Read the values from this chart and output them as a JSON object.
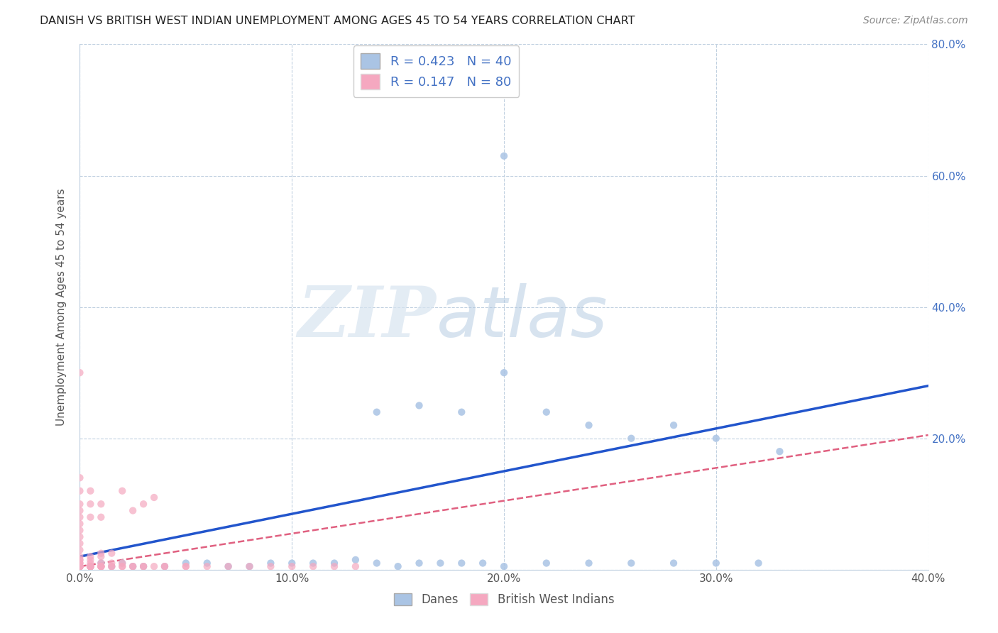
{
  "title": "DANISH VS BRITISH WEST INDIAN UNEMPLOYMENT AMONG AGES 45 TO 54 YEARS CORRELATION CHART",
  "source": "Source: ZipAtlas.com",
  "ylabel": "Unemployment Among Ages 45 to 54 years",
  "xlim": [
    0.0,
    0.4
  ],
  "ylim": [
    0.0,
    0.8
  ],
  "xticks": [
    0.0,
    0.1,
    0.2,
    0.3,
    0.4
  ],
  "xticklabels": [
    "0.0%",
    "10.0%",
    "20.0%",
    "30.0%",
    "40.0%"
  ],
  "yticks": [
    0.0,
    0.2,
    0.4,
    0.6,
    0.8
  ],
  "yticklabels_right": [
    "",
    "20.0%",
    "40.0%",
    "60.0%",
    "80.0%"
  ],
  "danes_color": "#aac4e4",
  "bwi_color": "#f5a8c0",
  "danes_line_color": "#2255cc",
  "bwi_line_color": "#e06080",
  "danes_R": 0.423,
  "danes_N": 40,
  "bwi_R": 0.147,
  "bwi_N": 80,
  "danes_scatter_x": [
    0.005,
    0.01,
    0.015,
    0.02,
    0.025,
    0.03,
    0.04,
    0.05,
    0.06,
    0.07,
    0.08,
    0.09,
    0.1,
    0.11,
    0.12,
    0.13,
    0.14,
    0.15,
    0.16,
    0.17,
    0.18,
    0.19,
    0.2,
    0.22,
    0.24,
    0.26,
    0.28,
    0.3,
    0.32,
    0.33,
    0.14,
    0.16,
    0.18,
    0.2,
    0.22,
    0.24,
    0.26,
    0.28,
    0.2,
    0.3
  ],
  "danes_scatter_y": [
    0.005,
    0.01,
    0.005,
    0.01,
    0.005,
    0.005,
    0.005,
    0.01,
    0.01,
    0.005,
    0.005,
    0.01,
    0.01,
    0.01,
    0.01,
    0.015,
    0.01,
    0.005,
    0.01,
    0.01,
    0.01,
    0.01,
    0.005,
    0.01,
    0.01,
    0.01,
    0.01,
    0.01,
    0.01,
    0.18,
    0.24,
    0.25,
    0.24,
    0.3,
    0.24,
    0.22,
    0.2,
    0.22,
    0.63,
    0.2
  ],
  "bwi_scatter_x": [
    0.0,
    0.0,
    0.0,
    0.0,
    0.0,
    0.0,
    0.0,
    0.0,
    0.0,
    0.0,
    0.005,
    0.005,
    0.005,
    0.005,
    0.005,
    0.005,
    0.005,
    0.005,
    0.005,
    0.005,
    0.01,
    0.01,
    0.01,
    0.01,
    0.01,
    0.015,
    0.015,
    0.02,
    0.02,
    0.025,
    0.025,
    0.03,
    0.03,
    0.035,
    0.04,
    0.04,
    0.05,
    0.05,
    0.06,
    0.07,
    0.08,
    0.09,
    0.1,
    0.11,
    0.12,
    0.13,
    0.005,
    0.01,
    0.015,
    0.02,
    0.0,
    0.0,
    0.0,
    0.0,
    0.0,
    0.005,
    0.005,
    0.01,
    0.01,
    0.015,
    0.0,
    0.0,
    0.0,
    0.0,
    0.0,
    0.0,
    0.0,
    0.0,
    0.0,
    0.0,
    0.005,
    0.005,
    0.005,
    0.01,
    0.01,
    0.02,
    0.025,
    0.03,
    0.035,
    0.0
  ],
  "bwi_scatter_y": [
    0.005,
    0.005,
    0.005,
    0.005,
    0.005,
    0.005,
    0.005,
    0.005,
    0.005,
    0.005,
    0.005,
    0.005,
    0.005,
    0.005,
    0.005,
    0.005,
    0.005,
    0.005,
    0.005,
    0.005,
    0.005,
    0.005,
    0.005,
    0.005,
    0.005,
    0.005,
    0.005,
    0.005,
    0.005,
    0.005,
    0.005,
    0.005,
    0.005,
    0.005,
    0.005,
    0.005,
    0.005,
    0.005,
    0.005,
    0.005,
    0.005,
    0.005,
    0.005,
    0.005,
    0.005,
    0.005,
    0.01,
    0.01,
    0.01,
    0.01,
    0.01,
    0.01,
    0.015,
    0.015,
    0.02,
    0.015,
    0.02,
    0.02,
    0.025,
    0.025,
    0.03,
    0.04,
    0.05,
    0.06,
    0.07,
    0.08,
    0.09,
    0.1,
    0.12,
    0.14,
    0.08,
    0.1,
    0.12,
    0.08,
    0.1,
    0.12,
    0.09,
    0.1,
    0.11,
    0.3
  ],
  "watermark_zip": "ZIP",
  "watermark_atlas": "atlas",
  "grid_color": "#c0d0e0",
  "background_color": "#ffffff",
  "legend_color_danes": "#aac4e4",
  "legend_color_bwi": "#f5a8c0",
  "danes_line_intercept": 0.02,
  "danes_line_slope": 0.65,
  "bwi_line_intercept": 0.005,
  "bwi_line_slope": 0.5
}
